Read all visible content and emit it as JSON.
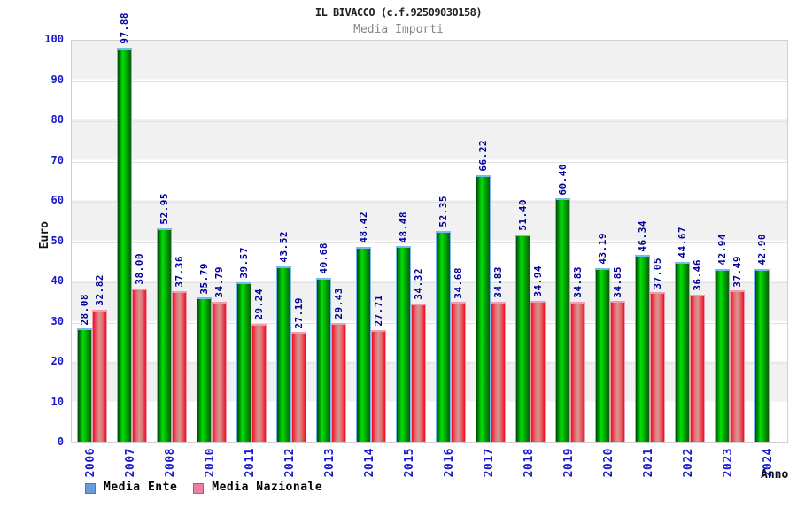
{
  "header": {
    "title": "IL BIVACCO (c.f.92509030158)",
    "subtitle": "Media Importi"
  },
  "chart_data": {
    "type": "bar",
    "title": "IL BIVACCO (c.f.92509030158)",
    "subtitle": "Media Importi",
    "xlabel": "Anno",
    "ylabel": "Euro",
    "ylim": [
      0,
      100
    ],
    "ytick_step": 10,
    "yticks": [
      0,
      10,
      20,
      30,
      40,
      50,
      60,
      70,
      80,
      90,
      100
    ],
    "grid": "alternating horizontal gray bands with decade gridlines",
    "legend_position": "bottom-left",
    "value_label_format": "2 decimals, rotated 90deg above bar",
    "categories": [
      "2006",
      "2007",
      "2008",
      "2010",
      "2011",
      "2012",
      "2013",
      "2014",
      "2015",
      "2016",
      "2017",
      "2018",
      "2019",
      "2020",
      "2021",
      "2022",
      "2023",
      "2024"
    ],
    "series": [
      {
        "name": "Media Ente",
        "bar_color": "#00c400",
        "bar_edge_color": "#79b7ec",
        "legend_swatch_color": "#6b9bdb",
        "values": [
          28.08,
          97.88,
          52.95,
          35.79,
          39.57,
          43.52,
          40.68,
          48.42,
          48.48,
          52.35,
          66.22,
          51.4,
          60.4,
          43.19,
          46.34,
          44.67,
          42.94,
          42.9
        ]
      },
      {
        "name": "Media Nazionale",
        "bar_color": "#f50a24",
        "bar_edge_color": "#f29cb4",
        "legend_swatch_color": "#ed7fa5",
        "values": [
          32.82,
          38.0,
          37.36,
          34.79,
          29.24,
          27.19,
          29.43,
          27.71,
          34.32,
          34.68,
          34.83,
          34.94,
          34.83,
          34.85,
          37.05,
          36.46,
          37.49,
          null
        ]
      }
    ]
  },
  "colors": {
    "tick_label_blue": "#1a1acc",
    "value_label_navy": "#000099",
    "title_color": "#222222",
    "subtitle_color": "#858585",
    "band_gray": "#f1f1f1",
    "plot_border": "#d0d0d0"
  }
}
